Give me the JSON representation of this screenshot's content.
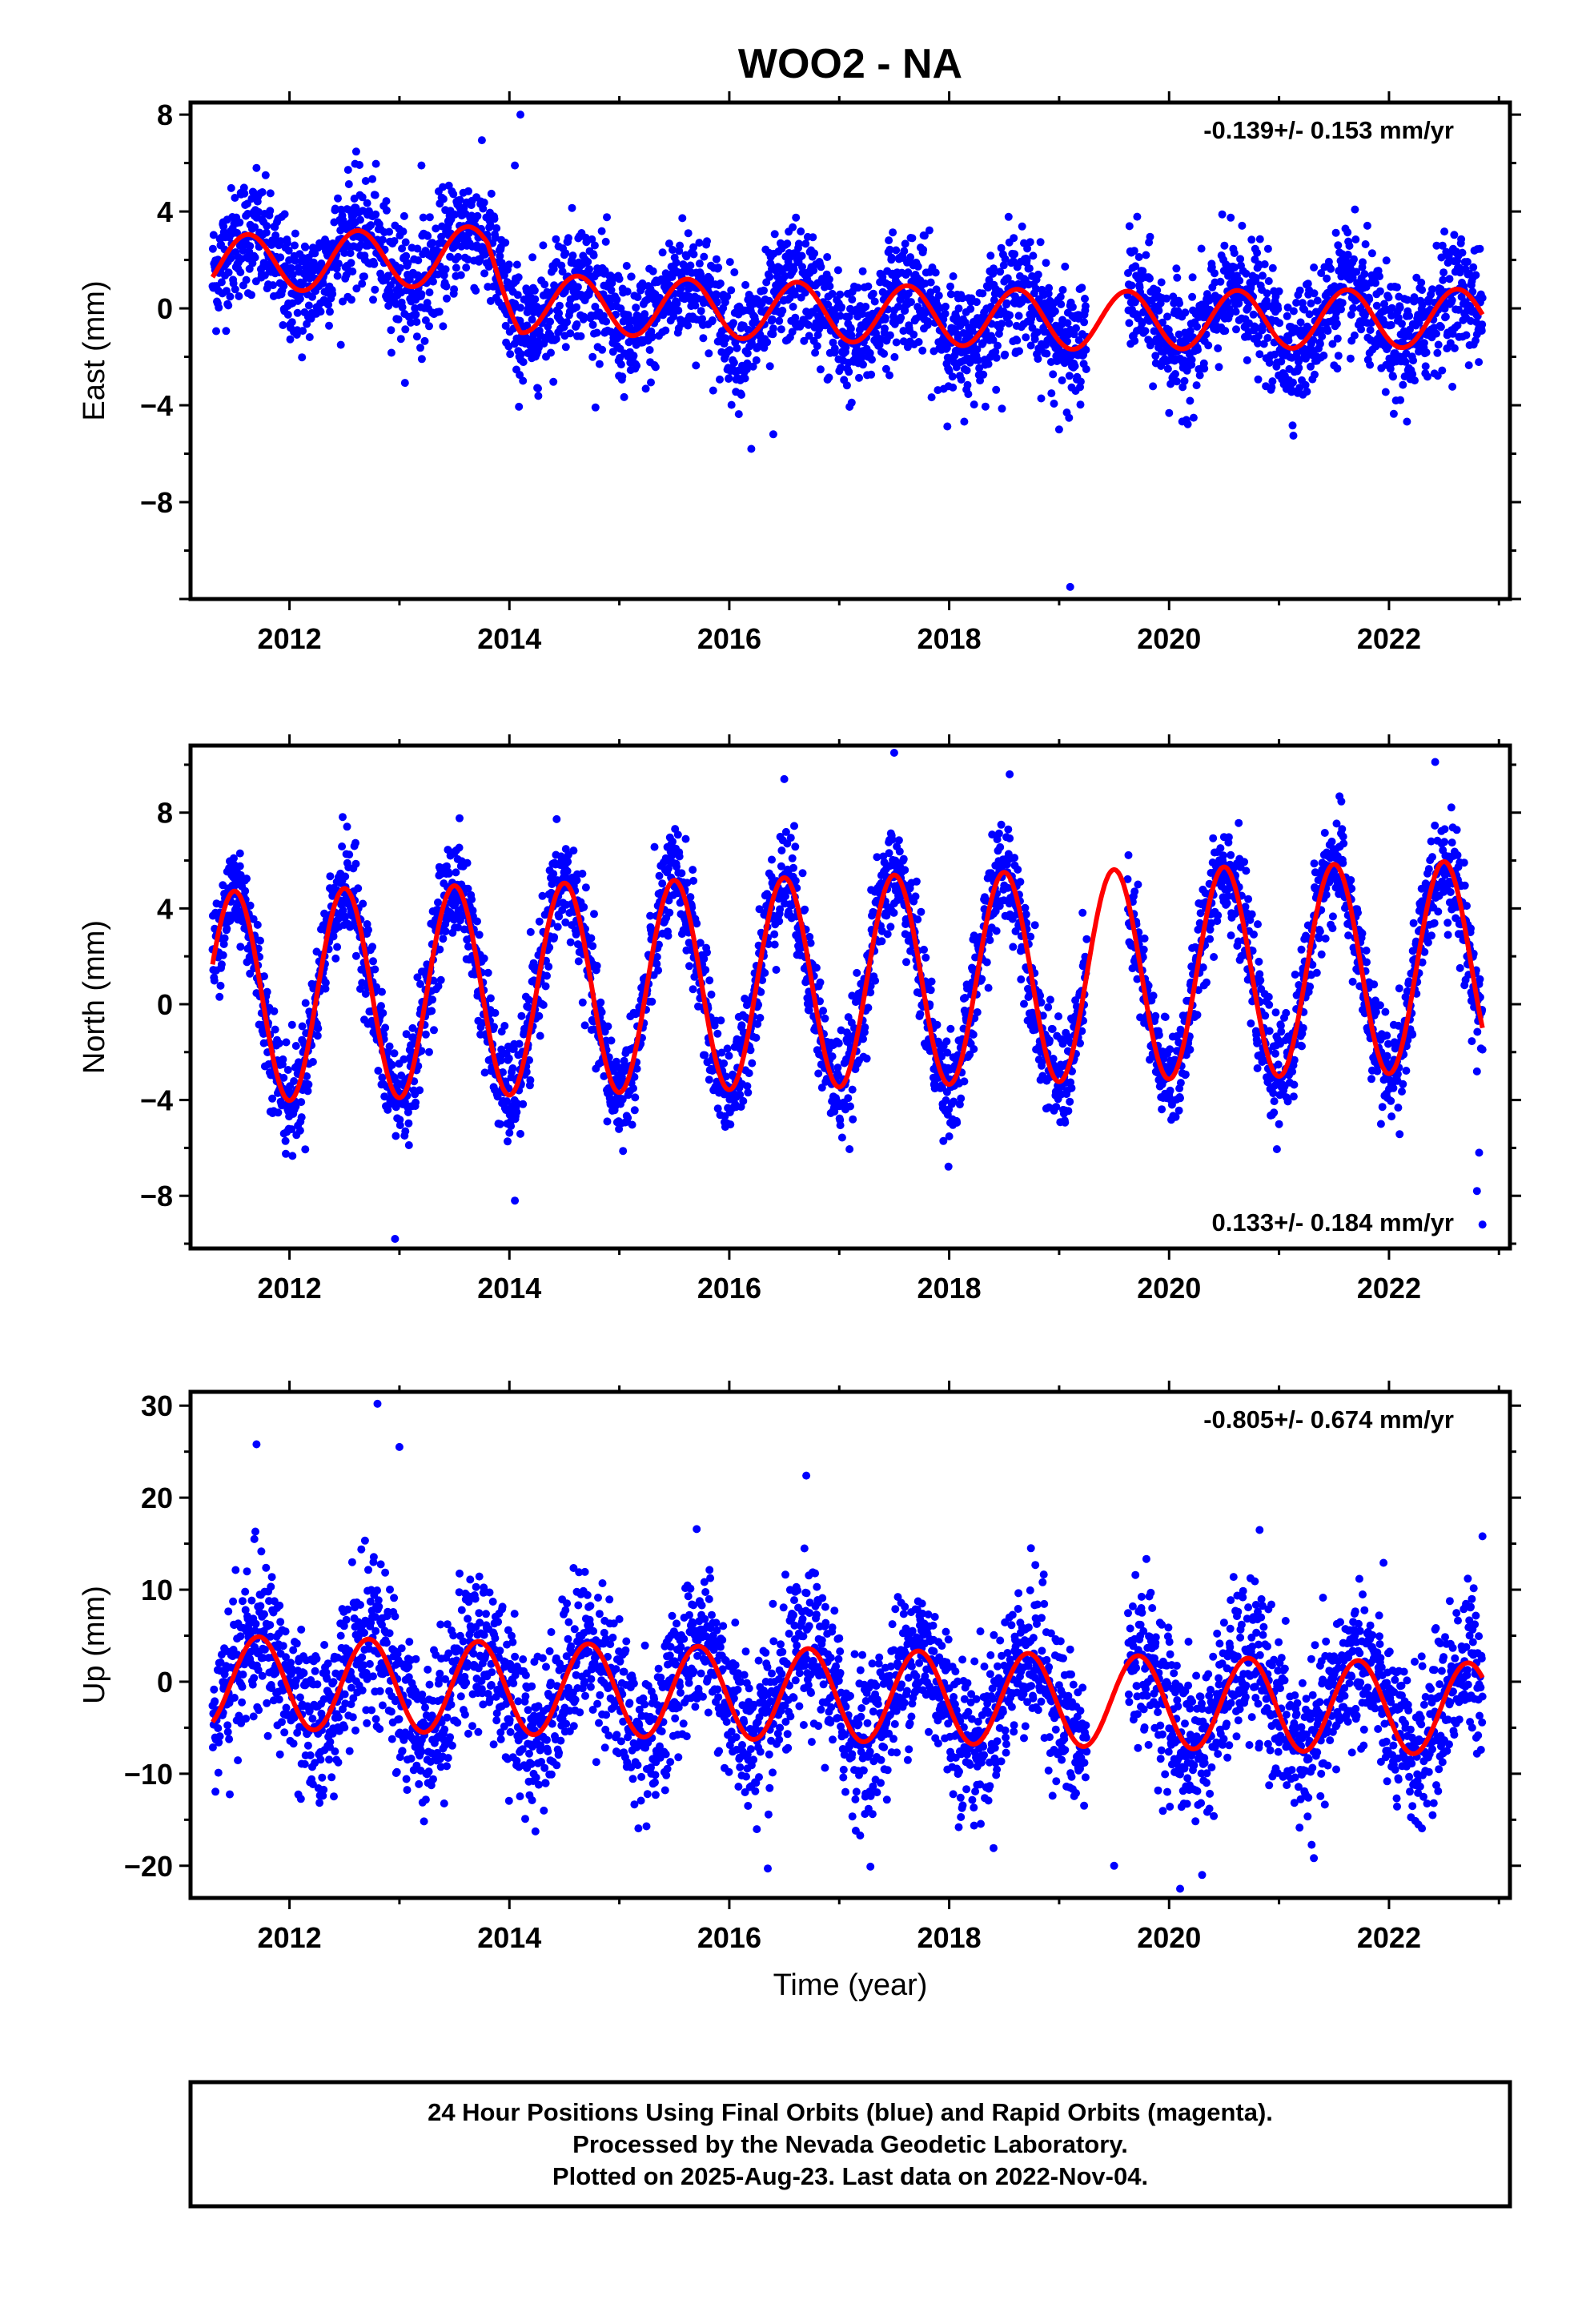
{
  "title": "WOO2 - NA",
  "xlabel": "Time (year)",
  "footer": {
    "line1": "24 Hour Positions Using Final Orbits (blue) and Rapid Orbits (magenta).",
    "line2": "Processed by the Nevada Geodetic Laboratory.",
    "line3": "Plotted on 2025-Aug-23. Last data on 2022-Nov-04."
  },
  "colors": {
    "points": "#0000ff",
    "fit": "#ff0000",
    "frame": "#000000"
  },
  "chart_data": [
    {
      "type": "scatter",
      "ylabel": "East (mm)",
      "rate": "-0.139+/- 0.153 mm/yr",
      "rate_position": "top-right",
      "xlim": [
        2011.1,
        2023.1
      ],
      "ylim": [
        -12,
        8.5
      ],
      "xticks": [
        2012,
        2014,
        2016,
        2018,
        2020,
        2022
      ],
      "yticks": [
        -8,
        -4,
        0,
        4,
        8
      ],
      "model": {
        "trend_mm_per_yr": -0.139,
        "offset_mm_at_2011_3": 0.9,
        "annual_amp_mm": 1.2,
        "annual_phase_peak": 0.62,
        "semiannual_amp_mm": 0.0,
        "scatter_mm": 1.2,
        "envelope": [
          [
            2011.3,
            1.8
          ],
          [
            2013.8,
            2.2
          ],
          [
            2014.1,
            0.2
          ],
          [
            2016.5,
            -0.1
          ],
          [
            2019.2,
            -0.5
          ],
          [
            2022.9,
            -0.4
          ]
        ]
      },
      "outliers": [
        [
          2014.1,
          8.0
        ],
        [
          2019.1,
          -11.5
        ],
        [
          2016.2,
          -5.8
        ],
        [
          2016.4,
          -5.2
        ],
        [
          2019.0,
          -5.0
        ],
        [
          2013.2,
          5.9
        ],
        [
          2011.7,
          5.8
        ],
        [
          2014.05,
          5.9
        ]
      ],
      "series": [
        {
          "name": "",
          "kind": "points",
          "x_range": [
            2011.3,
            2022.85
          ],
          "gap": [
            2019.25,
            2019.62
          ]
        },
        {
          "name": "",
          "kind": "fit"
        }
      ]
    },
    {
      "type": "scatter",
      "ylabel": "North (mm)",
      "rate": "0.133+/- 0.184 mm/yr",
      "rate_position": "bottom-right",
      "xlim": [
        2011.1,
        2023.1
      ],
      "ylim": [
        -10.2,
        10.8
      ],
      "xticks": [
        2012,
        2014,
        2016,
        2018,
        2020,
        2022
      ],
      "yticks": [
        -8,
        -4,
        0,
        4,
        8
      ],
      "model": {
        "trend_mm_per_yr": 0.133,
        "offset_mm_at_2011_3": 0.4,
        "annual_amp_mm": 4.4,
        "annual_phase_peak": 0.5,
        "semiannual_amp_mm": 0.0,
        "scatter_mm": 1.1,
        "envelope": [
          [
            2011.3,
            0.3
          ],
          [
            2022.9,
            1.6
          ]
        ]
      },
      "outliers": [
        [
          2012.96,
          -9.8
        ],
        [
          2014.05,
          -8.2
        ],
        [
          2017.5,
          10.5
        ],
        [
          2022.85,
          -9.2
        ],
        [
          2022.8,
          -7.8
        ],
        [
          2022.82,
          -6.2
        ],
        [
          2011.55,
          6.3
        ],
        [
          2016.5,
          9.4
        ],
        [
          2018.55,
          9.6
        ]
      ],
      "series": [
        {
          "name": "",
          "kind": "points",
          "x_range": [
            2011.3,
            2022.85
          ],
          "gap": [
            2019.25,
            2019.62
          ]
        },
        {
          "name": "",
          "kind": "fit"
        }
      ]
    },
    {
      "type": "scatter",
      "ylabel": "Up (mm)",
      "rate": "-0.805+/- 0.674 mm/yr",
      "rate_position": "top-right",
      "xlim": [
        2011.1,
        2023.1
      ],
      "ylim": [
        -23.5,
        31.5
      ],
      "xticks": [
        2012,
        2014,
        2016,
        2018,
        2020,
        2022
      ],
      "yticks": [
        -20,
        -10,
        0,
        10,
        20,
        30
      ],
      "model": {
        "trend_mm_per_yr": -0.805,
        "offset_mm_at_2011_3": 5.5,
        "annual_amp_mm": 5.0,
        "annual_phase_peak": 0.72,
        "semiannual_amp_mm": 0.0,
        "scatter_mm": 4.2,
        "envelope": [
          [
            2011.3,
            0.0
          ],
          [
            2022.9,
            -3.0
          ]
        ]
      },
      "outliers": [
        [
          2012.8,
          30.2
        ],
        [
          2013.0,
          25.5
        ],
        [
          2011.7,
          25.8
        ],
        [
          2016.7,
          22.4
        ],
        [
          2016.35,
          -20.3
        ],
        [
          2020.1,
          -22.5
        ],
        [
          2020.3,
          -21.0
        ],
        [
          2022.85,
          15.8
        ],
        [
          2019.5,
          -20.0
        ]
      ],
      "series": [
        {
          "name": "",
          "kind": "points",
          "x_range": [
            2011.3,
            2022.85
          ],
          "gap": [
            2019.25,
            2019.62
          ]
        },
        {
          "name": "",
          "kind": "fit"
        }
      ]
    }
  ]
}
